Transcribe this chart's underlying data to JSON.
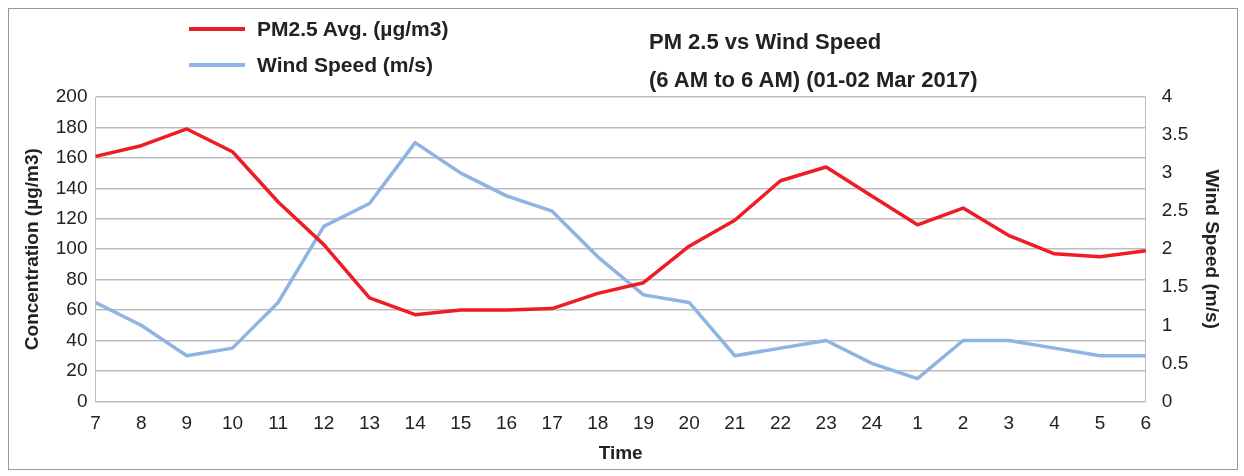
{
  "chart_data": {
    "type": "line",
    "title": "PM 2.5 vs Wind Speed",
    "subtitle": "(6 AM to 6 AM) (01-02 Mar 2017)",
    "xlabel": "Time",
    "ylabel": "Concentration (µg/m3)",
    "y2label": "Wind Speed (m/s)",
    "categories": [
      "7",
      "8",
      "9",
      "10",
      "11",
      "12",
      "13",
      "14",
      "15",
      "16",
      "17",
      "18",
      "19",
      "20",
      "21",
      "22",
      "23",
      "24",
      "1",
      "2",
      "3",
      "4",
      "5",
      "6"
    ],
    "series": [
      {
        "name": "PM2.5 Avg. (µg/m3)",
        "color": "#ee1c24",
        "values": [
          161,
          168,
          179,
          164,
          131,
          103,
          68,
          57,
          60,
          60,
          61,
          71,
          78,
          102,
          119,
          145,
          154,
          135,
          116,
          127,
          109,
          97,
          95,
          99
        ]
      },
      {
        "name": "Wind Speed (m/s)",
        "color": "#8db4e2",
        "axis": "y2",
        "values": [
          1.3,
          1.0,
          0.6,
          0.7,
          1.3,
          2.3,
          2.6,
          3.4,
          3.0,
          2.7,
          2.5,
          1.9,
          1.4,
          1.3,
          0.6,
          0.7,
          0.8,
          0.5,
          0.3,
          0.8,
          0.8,
          0.7,
          0.6,
          0.6
        ]
      }
    ],
    "ylim": [
      0,
      200
    ],
    "yticks": [
      0,
      20,
      40,
      60,
      80,
      100,
      120,
      140,
      160,
      180,
      200
    ],
    "y2lim": [
      0,
      4
    ],
    "y2ticks": [
      0,
      0.5,
      1,
      1.5,
      2,
      2.5,
      3,
      3.5,
      4
    ],
    "grid": "y",
    "legend": "top left",
    "marker": "none",
    "line_style": "solid"
  }
}
